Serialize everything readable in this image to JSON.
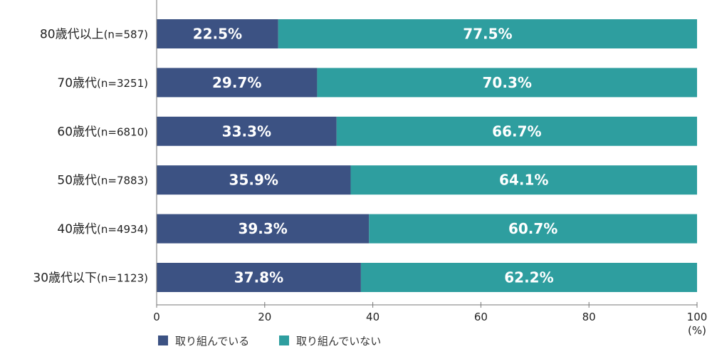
{
  "chart_data": {
    "type": "bar",
    "orientation": "horizontal",
    "stacked": true,
    "categories": [
      "80歳代以上(n=587)",
      "70歳代(n=3251)",
      "60歳代(n=6810)",
      "50歳代(n=7883)",
      "40歳代(n=4934)",
      "30歳代以下(n=1123)"
    ],
    "series": [
      {
        "name": "取り組んでいる",
        "color": "#3c5283",
        "values": [
          22.5,
          29.7,
          33.3,
          35.9,
          39.3,
          37.8
        ]
      },
      {
        "name": "取り組んでいない",
        "color": "#2e9e9f",
        "values": [
          77.5,
          70.3,
          66.7,
          64.1,
          60.7,
          62.2
        ]
      }
    ],
    "value_labels": [
      [
        "22.5%",
        "29.7%",
        "33.3%",
        "35.9%",
        "39.3%",
        "37.8%"
      ],
      [
        "77.5%",
        "70.3%",
        "66.7%",
        "64.1%",
        "60.7%",
        "62.2%"
      ]
    ],
    "xlim": [
      0,
      100
    ],
    "xticks": [
      0,
      20,
      40,
      60,
      80,
      100
    ],
    "xunit": "(%)",
    "legend_position": "bottom-left",
    "grid": false
  }
}
